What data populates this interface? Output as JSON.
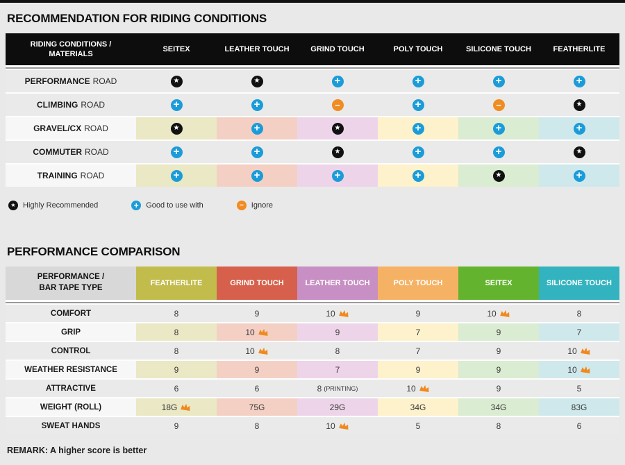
{
  "colors": {
    "star": "#111111",
    "plus": "#1b9cd9",
    "minus": "#f08c21",
    "crown": "#f0891e"
  },
  "recommendation": {
    "title": "RECOMMENDATION FOR RIDING CONDITIONS",
    "header": {
      "first": "RIDING CONDITIONS /\nMATERIALS",
      "columns": [
        "SEITEX",
        "LEATHER TOUCH",
        "GRIND TOUCH",
        "POLY TOUCH",
        "SILICONE TOUCH",
        "FEATHERLITE"
      ]
    },
    "rows": [
      {
        "label_bold": "PERFORMANCE",
        "label_rest": "ROAD",
        "colored": false,
        "icons": [
          "star",
          "star",
          "plus",
          "plus",
          "plus",
          "plus"
        ]
      },
      {
        "label_bold": "CLIMBING",
        "label_rest": "ROAD",
        "colored": false,
        "icons": [
          "plus",
          "plus",
          "minus",
          "plus",
          "minus",
          "star"
        ]
      },
      {
        "label_bold": "GRAVEL/CX",
        "label_rest": "ROAD",
        "colored": true,
        "icons": [
          "star",
          "plus",
          "star",
          "plus",
          "plus",
          "plus"
        ]
      },
      {
        "label_bold": "COMMUTER",
        "label_rest": "ROAD",
        "colored": false,
        "icons": [
          "plus",
          "plus",
          "star",
          "plus",
          "plus",
          "star"
        ]
      },
      {
        "label_bold": "TRAINING",
        "label_rest": "ROAD",
        "colored": true,
        "icons": [
          "plus",
          "plus",
          "plus",
          "plus",
          "star",
          "plus"
        ]
      }
    ],
    "legend": [
      {
        "icon": "star",
        "label": "Highly Recommended"
      },
      {
        "icon": "plus",
        "label": "Good to use with"
      },
      {
        "icon": "minus",
        "label": "Ignore"
      }
    ]
  },
  "performance": {
    "title": "PERFORMANCE COMPARISON",
    "header_first": "PERFORMANCE /\nBAR TAPE TYPE",
    "columns": [
      {
        "label": "FEATHERLITE",
        "color": "#c2bc4d",
        "pale": "#eae8c5"
      },
      {
        "label": "GRIND TOUCH",
        "color": "#d7604c",
        "pale": "#f4d0c4"
      },
      {
        "label": "LEATHER TOUCH",
        "color": "#c78fc3",
        "pale": "#eed4e9"
      },
      {
        "label": "POLY TOUCH",
        "color": "#f5b264",
        "pale": "#fdf2cb"
      },
      {
        "label": "SEITEX",
        "color": "#64b32e",
        "pale": "#daecd1"
      },
      {
        "label": "SILICONE TOUCH",
        "color": "#33b3bf",
        "pale": "#cfe8ec"
      }
    ],
    "rows": [
      {
        "label": "COMFORT",
        "colored": false,
        "cells": [
          {
            "v": "8"
          },
          {
            "v": "9"
          },
          {
            "v": "10",
            "crown": true
          },
          {
            "v": "9"
          },
          {
            "v": "10",
            "crown": true
          },
          {
            "v": "8"
          }
        ]
      },
      {
        "label": "GRIP",
        "colored": true,
        "cells": [
          {
            "v": "8"
          },
          {
            "v": "10",
            "crown": true
          },
          {
            "v": "9"
          },
          {
            "v": "7"
          },
          {
            "v": "9"
          },
          {
            "v": "7"
          }
        ]
      },
      {
        "label": "CONTROL",
        "colored": false,
        "cells": [
          {
            "v": "8"
          },
          {
            "v": "10",
            "crown": true
          },
          {
            "v": "8"
          },
          {
            "v": "7"
          },
          {
            "v": "9"
          },
          {
            "v": "10",
            "crown": true
          }
        ]
      },
      {
        "label": "WEATHER RESISTANCE",
        "colored": true,
        "cells": [
          {
            "v": "9"
          },
          {
            "v": "9"
          },
          {
            "v": "7"
          },
          {
            "v": "9"
          },
          {
            "v": "9"
          },
          {
            "v": "10",
            "crown": true
          }
        ]
      },
      {
        "label": "ATTRACTIVE",
        "colored": false,
        "cells": [
          {
            "v": "6"
          },
          {
            "v": "6"
          },
          {
            "v": "8",
            "note": "(PRINTING)"
          },
          {
            "v": "10",
            "crown": true
          },
          {
            "v": "9"
          },
          {
            "v": "5"
          }
        ]
      },
      {
        "label": "WEIGHT (ROLL)",
        "colored": true,
        "cells": [
          {
            "v": "18G",
            "crown": true
          },
          {
            "v": "75G"
          },
          {
            "v": "29G"
          },
          {
            "v": "34G"
          },
          {
            "v": "34G"
          },
          {
            "v": "83G"
          }
        ]
      },
      {
        "label": "SWEAT HANDS",
        "colored": false,
        "cells": [
          {
            "v": "9"
          },
          {
            "v": "8"
          },
          {
            "v": "10",
            "crown": true
          },
          {
            "v": "5"
          },
          {
            "v": "8"
          },
          {
            "v": "6"
          }
        ]
      }
    ],
    "remark": "REMARK: A higher score is better"
  }
}
